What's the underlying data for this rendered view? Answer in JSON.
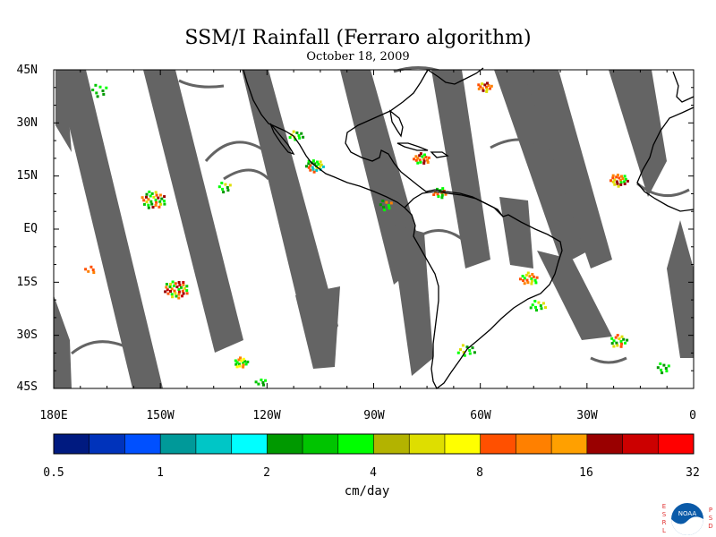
{
  "title": "SSM/I Rainfall (Ferraro algorithm)",
  "date": "October 18, 2009",
  "lat_labels": [
    "45N",
    "30N",
    "15N",
    "EQ",
    "15S",
    "30S",
    "45S"
  ],
  "lon_labels": [
    "180E",
    "150W",
    "120W",
    "90W",
    "60W",
    "30W",
    "0"
  ],
  "colorbar": {
    "units": "cm/day",
    "tick_labels": [
      "0.5",
      "1",
      "2",
      "4",
      "8",
      "16",
      "32"
    ],
    "colors": [
      "#001a80",
      "#0033bb",
      "#0050ff",
      "#009999",
      "#00c6c6",
      "#00ffff",
      "#009900",
      "#00c400",
      "#00ff00",
      "#b3b300",
      "#dede00",
      "#ffff00",
      "#ff5000",
      "#ff8000",
      "#ffa000",
      "#990000",
      "#cc0000",
      "#ff0000"
    ]
  },
  "swath_color": "#646464",
  "logo": {
    "left_text": "ESRL",
    "right_text": "PSD",
    "center_text": "NOAA"
  }
}
